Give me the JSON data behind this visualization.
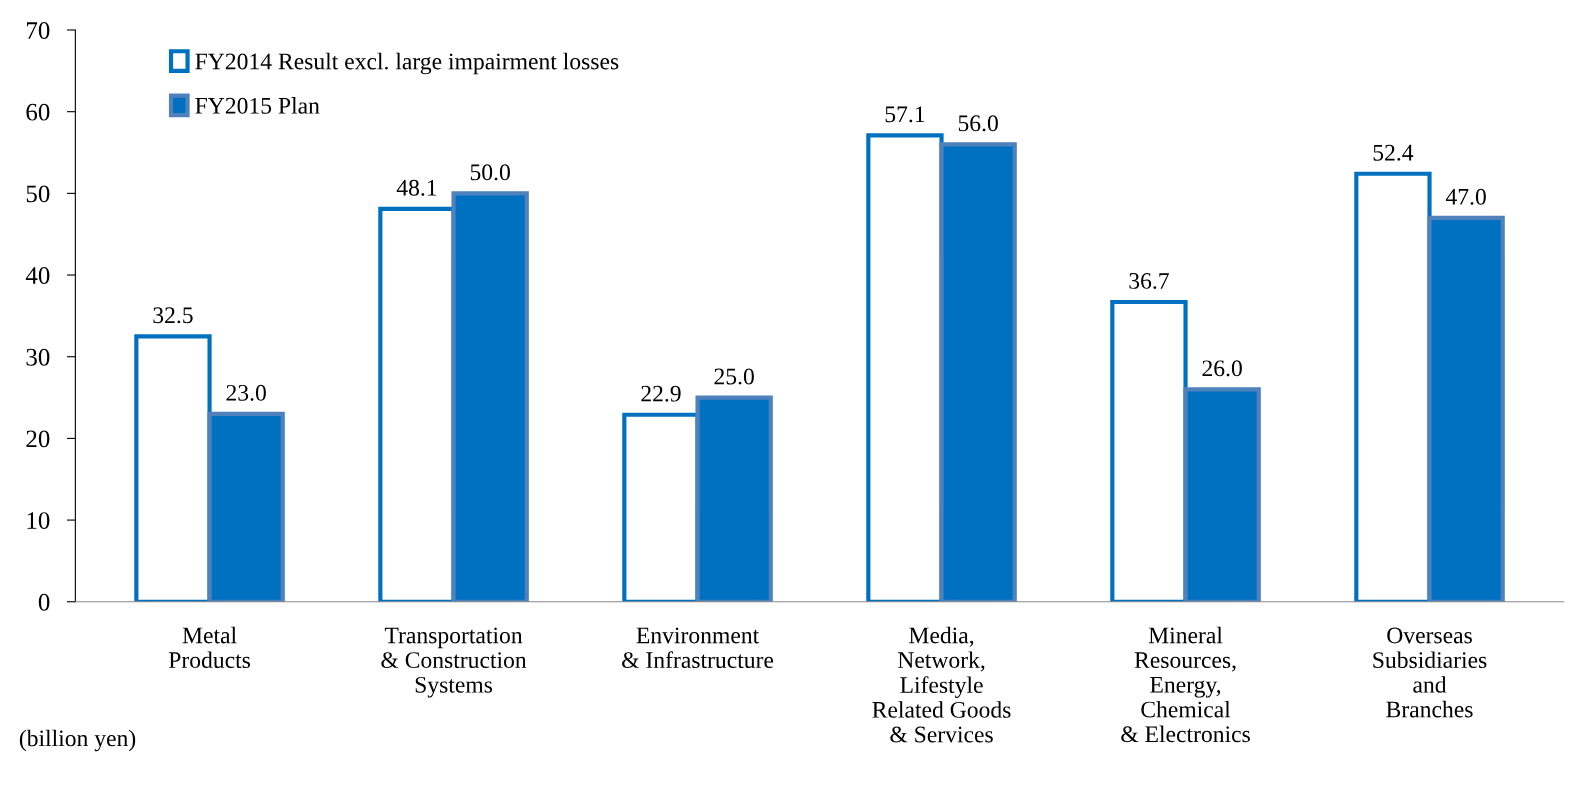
{
  "chart_data": {
    "type": "bar",
    "categories": [
      "Metal\nProducts",
      "Transportation\n& Construction\nSystems",
      "Environment\n& Infrastructure",
      "Media,\nNetwork,\nLifestyle\nRelated Goods\n& Services",
      "Mineral\nResources,\nEnergy,\nChemical\n& Electronics",
      "Overseas\nSubsidiaries\nand\nBranches"
    ],
    "series": [
      {
        "name": "FY2014 Result excl. large impairment losses",
        "color": "#ffffff",
        "values": [
          32.5,
          48.1,
          22.9,
          57.1,
          36.7,
          52.4
        ],
        "value_labels": [
          "32.5",
          "48.1",
          "22.9",
          "57.1",
          "36.7",
          "52.4"
        ]
      },
      {
        "name": "FY2015 Plan",
        "color": "#0070c0",
        "values": [
          23.0,
          50.0,
          25.0,
          56.0,
          26.0,
          47.0
        ],
        "value_labels": [
          "23.0",
          "50.0",
          "25.0",
          "56.0",
          "26.0",
          "47.0"
        ]
      }
    ],
    "ylim": [
      0,
      70
    ],
    "yticks": [
      0,
      10,
      20,
      30,
      40,
      50,
      60,
      70
    ],
    "legend": "top left",
    "grid": false,
    "annotations": [
      "(billion yen)"
    ]
  }
}
